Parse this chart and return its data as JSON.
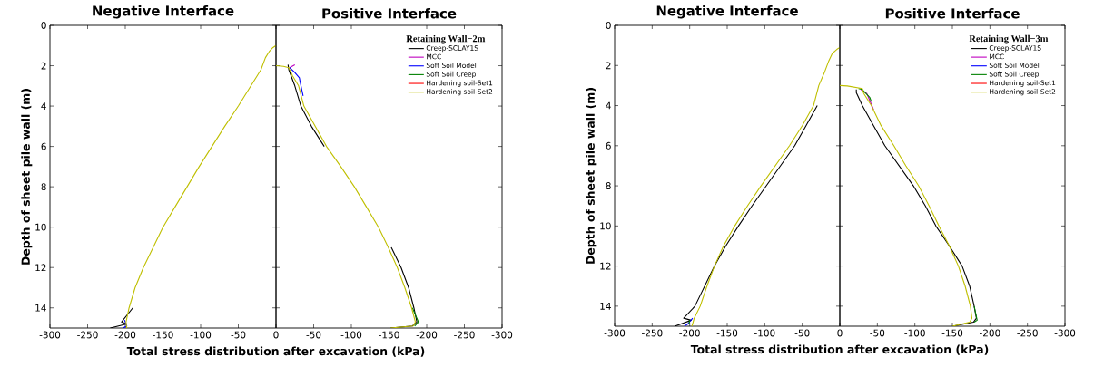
{
  "chart_data": [
    {
      "type": "line",
      "title": "Negative Interface",
      "ylabel": "Depth of sheet pile wall (m)",
      "xlabel": "Total stress distribution after excavation (kPa)",
      "xlim": [
        -300,
        0
      ],
      "xticks": [
        -300,
        -250,
        -200,
        -150,
        -100,
        -50,
        0
      ],
      "ylim": [
        15,
        0
      ],
      "yticks": [
        0,
        2,
        4,
        6,
        8,
        10,
        12,
        14
      ],
      "marker": "none",
      "line_style": "solid",
      "series": [
        {
          "color": "#000000",
          "x": [
            null,
            null,
            null,
            -190,
            -205,
            -198,
            -220
          ],
          "values": [
            null,
            null,
            null,
            14.0,
            14.7,
            14.8,
            15.0
          ]
        },
        {
          "color": "#0000ff",
          "x": [
            null,
            null,
            -201,
            -198,
            -203
          ],
          "values": [
            null,
            null,
            14.6,
            14.9,
            15.0
          ]
        },
        {
          "color": "#bfbf00",
          "x": [
            0,
            -4,
            -9,
            -14,
            -20,
            -35,
            -50,
            -68,
            -85,
            -102,
            -118,
            -134,
            -150,
            -163,
            -176,
            -187,
            -195,
            -199,
            -198
          ],
          "values": [
            1.0,
            1.1,
            1.3,
            1.6,
            2.2,
            3.1,
            4.0,
            5.0,
            6.0,
            7.0,
            8.0,
            9.0,
            10.0,
            11.0,
            12.0,
            13.0,
            14.0,
            14.7,
            15.0
          ]
        }
      ]
    },
    {
      "type": "line",
      "title": "Positive Interface",
      "legend_title": "Retaining Wall−2m",
      "legend": "top right",
      "tick_labels": "x",
      "xlim": [
        0,
        -300
      ],
      "xticks": [
        -50,
        -100,
        -150,
        -200,
        -250,
        -300
      ],
      "ylim": [
        15,
        0
      ],
      "yticks": [
        0,
        2,
        4,
        6,
        8,
        10,
        12,
        14
      ],
      "marker": "none",
      "line_style": "solid",
      "series": [
        {
          "name": "Creep-SCLAY1S",
          "color": "#000000",
          "x": [
            null,
            null,
            -16,
            -17,
            -25,
            -33,
            -47,
            -64,
            null,
            null,
            null,
            null,
            -153,
            -166,
            -176,
            -183,
            -187,
            -181,
            -152
          ],
          "values": [
            null,
            null,
            1.95,
            2.2,
            3.0,
            4.0,
            5.0,
            6.0,
            null,
            null,
            null,
            null,
            11.0,
            12.0,
            13.0,
            14.0,
            14.7,
            14.9,
            15.0
          ]
        },
        {
          "name": "MCC",
          "color": "#bf00bf",
          "x": [
            -18,
            -25
          ],
          "values": [
            2.1,
            1.95
          ]
        },
        {
          "name": "Soft Soil Model",
          "color": "#0000ff",
          "x": [
            -18,
            -24,
            -31,
            -32,
            -36
          ],
          "values": [
            2.1,
            2.3,
            2.6,
            2.8,
            3.5
          ]
        },
        {
          "name": "Soft Soil Creep",
          "color": "#008000",
          "x": [
            null,
            -181,
            -189,
            -184
          ],
          "values": [
            null,
            14.0,
            14.7,
            14.9
          ]
        },
        {
          "name": "Hardening soil-Set1",
          "color": "#ff0000",
          "x": [
            null
          ],
          "values": [
            null
          ]
        },
        {
          "name": "Hardening soil-Set2",
          "color": "#bfbf00",
          "x": [
            0,
            -10,
            -17,
            -22,
            -30,
            -37,
            -52,
            -67,
            -86,
            -104,
            -120,
            -136,
            -149,
            -161,
            -171,
            -180,
            -185,
            -182,
            -152
          ],
          "values": [
            2.0,
            2.03,
            2.1,
            2.5,
            3.0,
            4.0,
            5.0,
            6.0,
            7.0,
            8.0,
            9.0,
            10.0,
            11.0,
            12.0,
            13.0,
            14.0,
            14.7,
            14.9,
            15.0
          ]
        }
      ]
    },
    {
      "type": "line",
      "title": "Negative Interface",
      "ylabel": "Depth of sheet pile wall (m)",
      "xlabel": "Total stress distribution after excavation (kPa)",
      "xlim": [
        -300,
        0
      ],
      "xticks": [
        -300,
        -250,
        -200,
        -150,
        -100,
        -50,
        0
      ],
      "ylim": [
        15,
        0
      ],
      "yticks": [
        0,
        2,
        4,
        6,
        8,
        10,
        12,
        14
      ],
      "marker": "none",
      "line_style": "solid",
      "series": [
        {
          "color": "#000000",
          "x": [
            null,
            null,
            -30,
            -45,
            -60,
            -79,
            -98,
            -117,
            -135,
            -152,
            -167,
            -180,
            -193,
            -208,
            -198,
            -220
          ],
          "values": [
            null,
            null,
            4.0,
            5.0,
            6.0,
            7.0,
            8.0,
            9.0,
            10.0,
            11.0,
            12.0,
            13.0,
            14.0,
            14.6,
            14.7,
            15.0
          ]
        },
        {
          "color": "#0000ff",
          "x": [
            null,
            -196,
            -203,
            -207
          ],
          "values": [
            null,
            14.6,
            14.9,
            15.0
          ]
        },
        {
          "color": "#008000",
          "x": [
            null,
            -200,
            -201
          ],
          "values": [
            null,
            14.7,
            14.9
          ]
        },
        {
          "color": "#bfbf00",
          "x": [
            0,
            -4,
            -10,
            -15,
            -20,
            -28,
            -35,
            -50,
            -67,
            -86,
            -105,
            -123,
            -140,
            -155,
            -167,
            -177,
            -186,
            -194,
            -197
          ],
          "values": [
            1.1,
            1.2,
            1.4,
            1.8,
            2.3,
            3.0,
            4.0,
            5.0,
            6.0,
            7.0,
            8.0,
            9.0,
            10.0,
            11.0,
            12.0,
            13.0,
            14.0,
            14.6,
            15.0
          ]
        }
      ]
    },
    {
      "type": "line",
      "title": "Positive Interface",
      "legend_title": "Retaining Wall−3m",
      "legend": "top right",
      "tick_labels": "x",
      "xlim": [
        0,
        -300
      ],
      "xticks": [
        -50,
        -100,
        -150,
        -200,
        -250,
        -300
      ],
      "ylim": [
        15,
        0
      ],
      "yticks": [
        0,
        2,
        4,
        6,
        8,
        10,
        12,
        14
      ],
      "marker": "none",
      "line_style": "solid",
      "series": [
        {
          "name": "Creep-SCLAY1S",
          "color": "#000000",
          "x": [
            null,
            null,
            -22,
            -22,
            -30,
            -45,
            -60,
            -79,
            -98,
            -114,
            -128,
            -146,
            -163,
            -173,
            -179,
            -182,
            -178,
            -150
          ],
          "values": [
            null,
            null,
            3.2,
            3.35,
            4.0,
            5.0,
            6.0,
            7.0,
            8.0,
            9.0,
            10.0,
            11.0,
            12.0,
            13.0,
            14.0,
            14.6,
            14.8,
            15.0
          ]
        },
        {
          "name": "MCC",
          "color": "#bf00bf",
          "x": [
            -28,
            -36,
            -45
          ],
          "values": [
            3.2,
            3.4,
            4.2
          ]
        },
        {
          "name": "Soft Soil Model",
          "color": "#0000ff",
          "x": [
            null
          ],
          "values": [
            null
          ]
        },
        {
          "name": "Soft Soil Creep",
          "color": "#008000",
          "x": [
            -25,
            -30,
            -40,
            -42,
            null,
            -179,
            -183,
            -179
          ],
          "values": [
            3.15,
            3.2,
            3.6,
            3.8,
            null,
            14.0,
            14.7,
            14.8
          ]
        },
        {
          "name": "Hardening soil-Set1",
          "color": "#ff0000",
          "x": [
            null
          ],
          "values": [
            null
          ]
        },
        {
          "name": "Hardening soil-Set2",
          "color": "#bfbf00",
          "x": [
            0,
            -10,
            -30,
            -32,
            -42,
            -55,
            -72,
            -88,
            -105,
            -119,
            -132,
            -146,
            -158,
            -167,
            -174,
            -176,
            -173,
            -150
          ],
          "values": [
            3.0,
            3.02,
            3.15,
            3.4,
            4.0,
            5.0,
            6.0,
            7.0,
            8.0,
            9.0,
            10.0,
            11.0,
            12.0,
            13.0,
            14.0,
            14.6,
            14.8,
            15.0
          ]
        }
      ]
    }
  ]
}
